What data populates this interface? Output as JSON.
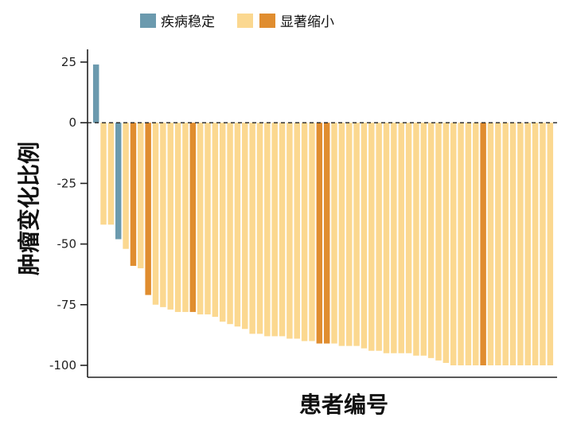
{
  "chart_data": {
    "type": "bar",
    "xlabel": "患者编号",
    "ylabel": "肿瘤变化比例",
    "ylim": [
      -104,
      26
    ],
    "yticks": [
      25,
      0,
      -25,
      -50,
      -75,
      -100
    ],
    "zero_line": "dashed",
    "grid": false,
    "legend": {
      "position": "top",
      "entries": [
        {
          "name": "疾病稳定",
          "category": "SD"
        },
        {
          "name": "",
          "category": "PR"
        },
        {
          "name": "显著缩小",
          "category": "CR"
        }
      ]
    },
    "colors": {
      "SD": "#6b9aae",
      "PR": "#fbd890",
      "CR": "#e08d2f"
    },
    "bars": [
      {
        "value": 24,
        "category": "SD"
      },
      {
        "value": -42,
        "category": "PR"
      },
      {
        "value": -42,
        "category": "PR"
      },
      {
        "value": -48,
        "category": "SD"
      },
      {
        "value": -52,
        "category": "PR"
      },
      {
        "value": -59,
        "category": "CR"
      },
      {
        "value": -60,
        "category": "PR"
      },
      {
        "value": -71,
        "category": "CR"
      },
      {
        "value": -75,
        "category": "PR"
      },
      {
        "value": -76,
        "category": "PR"
      },
      {
        "value": -77,
        "category": "PR"
      },
      {
        "value": -78,
        "category": "PR"
      },
      {
        "value": -78,
        "category": "PR"
      },
      {
        "value": -78,
        "category": "CR"
      },
      {
        "value": -79,
        "category": "PR"
      },
      {
        "value": -79,
        "category": "PR"
      },
      {
        "value": -80,
        "category": "PR"
      },
      {
        "value": -82,
        "category": "PR"
      },
      {
        "value": -83,
        "category": "PR"
      },
      {
        "value": -84,
        "category": "PR"
      },
      {
        "value": -85,
        "category": "PR"
      },
      {
        "value": -87,
        "category": "PR"
      },
      {
        "value": -87,
        "category": "PR"
      },
      {
        "value": -88,
        "category": "PR"
      },
      {
        "value": -88,
        "category": "PR"
      },
      {
        "value": -88,
        "category": "PR"
      },
      {
        "value": -89,
        "category": "PR"
      },
      {
        "value": -89,
        "category": "PR"
      },
      {
        "value": -90,
        "category": "PR"
      },
      {
        "value": -90,
        "category": "PR"
      },
      {
        "value": -91,
        "category": "CR"
      },
      {
        "value": -91,
        "category": "CR"
      },
      {
        "value": -91,
        "category": "PR"
      },
      {
        "value": -92,
        "category": "PR"
      },
      {
        "value": -92,
        "category": "PR"
      },
      {
        "value": -92,
        "category": "PR"
      },
      {
        "value": -93,
        "category": "PR"
      },
      {
        "value": -94,
        "category": "PR"
      },
      {
        "value": -94,
        "category": "PR"
      },
      {
        "value": -95,
        "category": "PR"
      },
      {
        "value": -95,
        "category": "PR"
      },
      {
        "value": -95,
        "category": "PR"
      },
      {
        "value": -95,
        "category": "PR"
      },
      {
        "value": -96,
        "category": "PR"
      },
      {
        "value": -96,
        "category": "PR"
      },
      {
        "value": -97,
        "category": "PR"
      },
      {
        "value": -98,
        "category": "PR"
      },
      {
        "value": -99,
        "category": "PR"
      },
      {
        "value": -100,
        "category": "PR"
      },
      {
        "value": -100,
        "category": "PR"
      },
      {
        "value": -100,
        "category": "PR"
      },
      {
        "value": -100,
        "category": "PR"
      },
      {
        "value": -100,
        "category": "CR"
      },
      {
        "value": -100,
        "category": "PR"
      },
      {
        "value": -100,
        "category": "PR"
      },
      {
        "value": -100,
        "category": "PR"
      },
      {
        "value": -100,
        "category": "PR"
      },
      {
        "value": -100,
        "category": "PR"
      },
      {
        "value": -100,
        "category": "PR"
      },
      {
        "value": -100,
        "category": "PR"
      },
      {
        "value": -100,
        "category": "PR"
      },
      {
        "value": -100,
        "category": "PR"
      }
    ]
  }
}
